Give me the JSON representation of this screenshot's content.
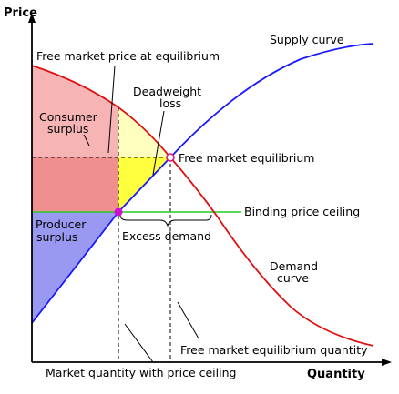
{
  "axes": {
    "y_label": "Price",
    "x_label": "Quantity"
  },
  "curves": {
    "supply_label": "Supply curve",
    "demand_label_line1": "Demand",
    "demand_label_line2": "curve",
    "ceiling_label": "Binding price ceiling",
    "supply_color": "#1a1aff",
    "demand_color": "#e01010",
    "ceiling_color": "#22cc22"
  },
  "regions": {
    "consumer_surplus_line1": "Consumer",
    "consumer_surplus_line2": "surplus",
    "producer_surplus_line1": "Producer",
    "producer_surplus_line2": "surplus",
    "deadweight_line1": "Deadweight",
    "deadweight_line2": "loss",
    "colors": {
      "consumer_light": "#f7b4b4",
      "consumer_dark": "#f08f8f",
      "producer": "#9999f2",
      "deadweight_light": "#ffffc0",
      "deadweight_dark": "#ffff40"
    }
  },
  "annotations": {
    "free_market_price": "Free market price at equilibrium",
    "free_market_equilibrium": "Free market equilibrium",
    "excess_demand": "Excess demand",
    "free_market_eq_quantity": "Free market equilibrium quantity",
    "market_quantity_ceiling": "Market quantity with price ceiling"
  },
  "points": {
    "equilibrium_marker_color": "#e01080",
    "ceiling_marker_color": "#cc10cc"
  }
}
